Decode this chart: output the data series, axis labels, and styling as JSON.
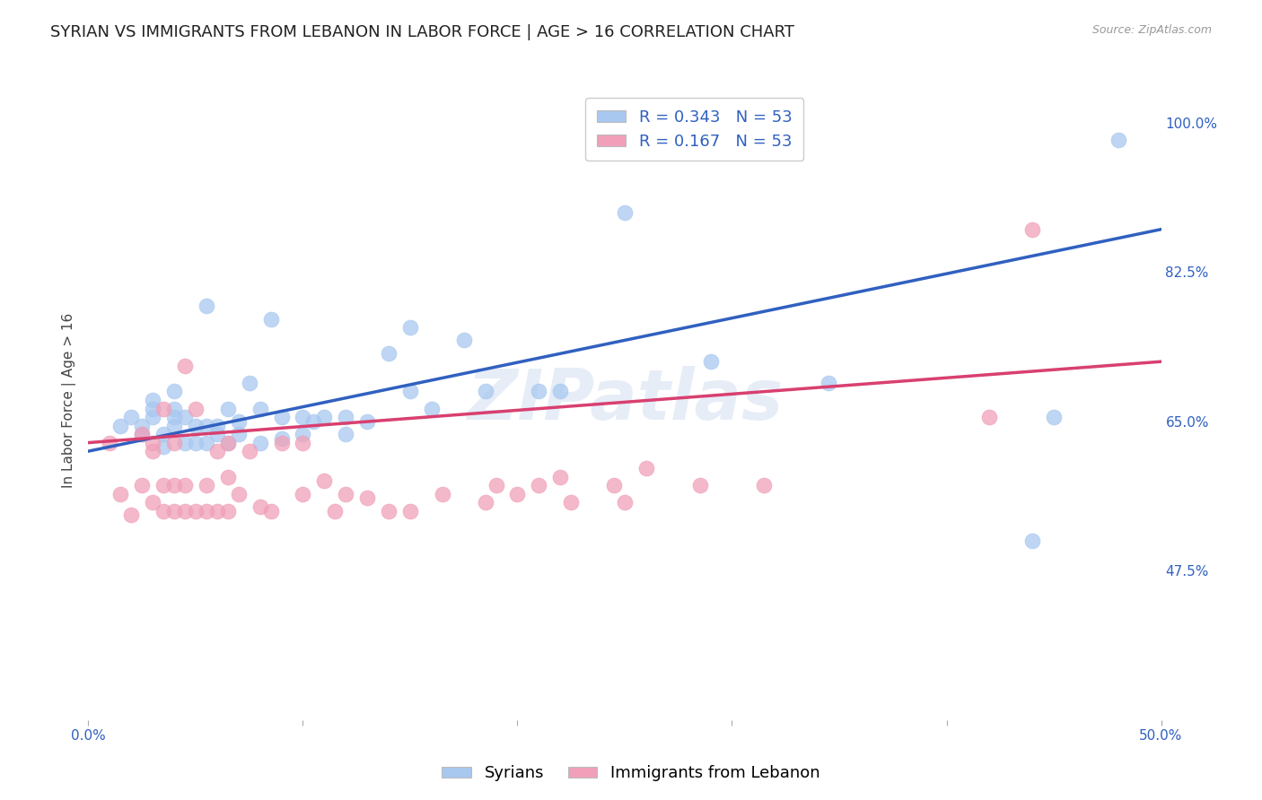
{
  "title": "SYRIAN VS IMMIGRANTS FROM LEBANON IN LABOR FORCE | AGE > 16 CORRELATION CHART",
  "source": "Source: ZipAtlas.com",
  "ylabel": "In Labor Force | Age > 16",
  "xlim": [
    0.0,
    0.5
  ],
  "ylim": [
    0.3,
    1.05
  ],
  "xtick_positions": [
    0.0,
    0.1,
    0.2,
    0.3,
    0.4,
    0.5
  ],
  "xticklabels": [
    "0.0%",
    "",
    "",
    "",
    "",
    "50.0%"
  ],
  "ytick_positions": [
    0.475,
    0.65,
    0.825,
    1.0
  ],
  "yticklabels": [
    "47.5%",
    "65.0%",
    "82.5%",
    "100.0%"
  ],
  "R_syrian": 0.343,
  "N_syrian": 53,
  "R_lebanon": 0.167,
  "N_lebanon": 53,
  "color_syrian": "#a8c8f0",
  "color_lebanon": "#f0a0b8",
  "color_trend_syrian": "#3060c0",
  "color_trend_lebanon": "#d84070",
  "watermark": "ZIPatlas",
  "legend_labels": [
    "Syrians",
    "Immigrants from Lebanon"
  ],
  "syrian_x": [
    0.015,
    0.02,
    0.025,
    0.025,
    0.03,
    0.03,
    0.03,
    0.035,
    0.035,
    0.04,
    0.04,
    0.04,
    0.04,
    0.045,
    0.045,
    0.05,
    0.05,
    0.055,
    0.055,
    0.055,
    0.06,
    0.06,
    0.065,
    0.065,
    0.07,
    0.07,
    0.075,
    0.08,
    0.08,
    0.085,
    0.09,
    0.09,
    0.1,
    0.1,
    0.105,
    0.11,
    0.12,
    0.12,
    0.13,
    0.14,
    0.15,
    0.15,
    0.16,
    0.175,
    0.185,
    0.21,
    0.22,
    0.25,
    0.29,
    0.345,
    0.44,
    0.45,
    0.48
  ],
  "syrian_y": [
    0.645,
    0.655,
    0.635,
    0.645,
    0.655,
    0.665,
    0.675,
    0.62,
    0.635,
    0.645,
    0.655,
    0.665,
    0.685,
    0.625,
    0.655,
    0.625,
    0.645,
    0.625,
    0.645,
    0.785,
    0.635,
    0.645,
    0.625,
    0.665,
    0.635,
    0.65,
    0.695,
    0.625,
    0.665,
    0.77,
    0.63,
    0.655,
    0.635,
    0.655,
    0.65,
    0.655,
    0.635,
    0.655,
    0.65,
    0.73,
    0.685,
    0.76,
    0.665,
    0.745,
    0.685,
    0.685,
    0.685,
    0.895,
    0.72,
    0.695,
    0.51,
    0.655,
    0.98
  ],
  "lebanon_x": [
    0.01,
    0.015,
    0.02,
    0.025,
    0.025,
    0.03,
    0.03,
    0.03,
    0.035,
    0.035,
    0.035,
    0.04,
    0.04,
    0.04,
    0.045,
    0.045,
    0.045,
    0.05,
    0.05,
    0.055,
    0.055,
    0.06,
    0.06,
    0.065,
    0.065,
    0.065,
    0.07,
    0.075,
    0.08,
    0.085,
    0.09,
    0.1,
    0.1,
    0.11,
    0.115,
    0.12,
    0.13,
    0.14,
    0.15,
    0.165,
    0.185,
    0.19,
    0.2,
    0.21,
    0.22,
    0.225,
    0.245,
    0.25,
    0.26,
    0.285,
    0.315,
    0.42,
    0.44
  ],
  "lebanon_y": [
    0.625,
    0.565,
    0.54,
    0.575,
    0.635,
    0.555,
    0.615,
    0.625,
    0.545,
    0.575,
    0.665,
    0.545,
    0.575,
    0.625,
    0.545,
    0.575,
    0.715,
    0.545,
    0.665,
    0.545,
    0.575,
    0.545,
    0.615,
    0.545,
    0.585,
    0.625,
    0.565,
    0.615,
    0.55,
    0.545,
    0.625,
    0.565,
    0.625,
    0.58,
    0.545,
    0.565,
    0.56,
    0.545,
    0.545,
    0.565,
    0.555,
    0.575,
    0.565,
    0.575,
    0.585,
    0.555,
    0.575,
    0.555,
    0.595,
    0.575,
    0.575,
    0.655,
    0.875
  ],
  "trend_syrian_x0": 0.0,
  "trend_syrian_y0": 0.615,
  "trend_syrian_x1": 0.5,
  "trend_syrian_y1": 0.875,
  "trend_lebanon_x0": 0.0,
  "trend_lebanon_y0": 0.625,
  "trend_lebanon_x1": 0.5,
  "trend_lebanon_y1": 0.72,
  "background_color": "#ffffff",
  "grid_color": "#cccccc",
  "title_fontsize": 13,
  "axis_label_fontsize": 11,
  "tick_fontsize": 11,
  "legend_fontsize": 13
}
